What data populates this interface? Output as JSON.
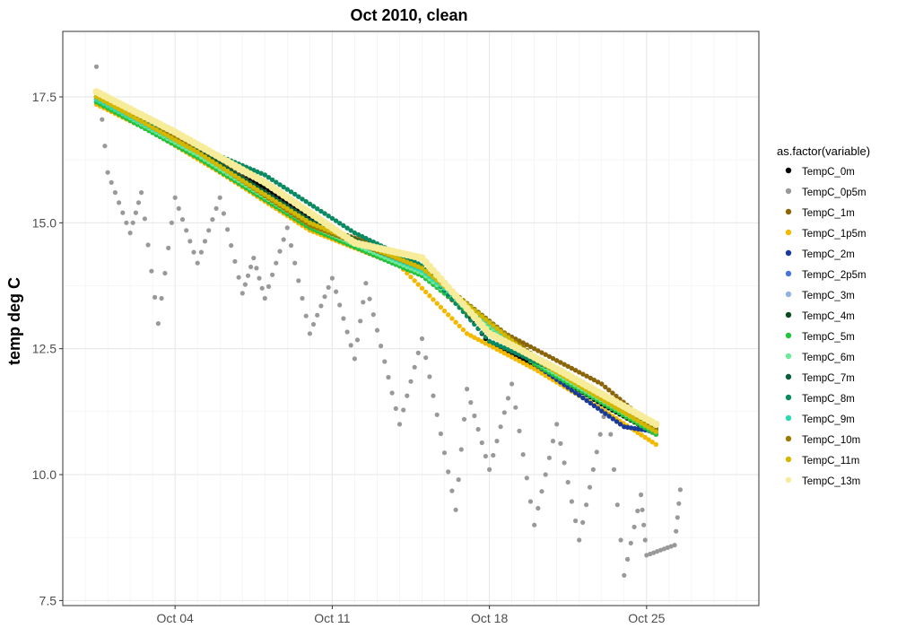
{
  "chart_data": {
    "type": "scatter",
    "title": "Oct 2010, clean",
    "xlabel": "",
    "ylabel": "temp deg C",
    "x_axis": {
      "type": "date",
      "range": [
        "2010-09-29",
        "2010-10-30"
      ],
      "ticks": [
        {
          "date": "2010-10-04",
          "label": "Oct 04"
        },
        {
          "date": "2010-10-11",
          "label": "Oct 11"
        },
        {
          "date": "2010-10-18",
          "label": "Oct 18"
        },
        {
          "date": "2010-10-25",
          "label": "Oct 25"
        }
      ]
    },
    "y_axis": {
      "range": [
        7.4,
        18.8
      ],
      "ticks": [
        {
          "value": 7.5,
          "label": "7.5"
        },
        {
          "value": 10.0,
          "label": "10.0"
        },
        {
          "value": 12.5,
          "label": "12.5"
        },
        {
          "value": 15.0,
          "label": "15.0"
        },
        {
          "value": 17.5,
          "label": "17.5"
        }
      ]
    },
    "grid": true,
    "legend": {
      "title": "as.factor(variable)",
      "placement": "right"
    },
    "series": [
      {
        "name": "TempC_0m",
        "color": "#000000",
        "points": [
          [
            "2010-09-30T12:00",
            17.45
          ],
          [
            "2010-10-02",
            17.05
          ],
          [
            "2010-10-05",
            16.35
          ],
          [
            "2010-10-08",
            15.7
          ],
          [
            "2010-10-11",
            14.85
          ],
          [
            "2010-10-14",
            14.35
          ],
          [
            "2010-10-16",
            13.8
          ],
          [
            "2010-10-18",
            12.6
          ],
          [
            "2010-10-21",
            11.95
          ],
          [
            "2010-10-23",
            11.4
          ],
          [
            "2010-10-25T10:00",
            10.8
          ]
        ]
      },
      {
        "name": "TempC_0p5m",
        "color": "#999999",
        "points": [
          [
            "2010-09-30T12:00",
            18.1
          ],
          [
            "2010-10-01",
            16.0
          ],
          [
            "2010-10-02",
            14.8
          ],
          [
            "2010-10-02T12:00",
            15.6
          ],
          [
            "2010-10-03T06:00",
            13.0
          ],
          [
            "2010-10-04",
            15.5
          ],
          [
            "2010-10-05",
            14.2
          ],
          [
            "2010-10-06",
            15.5
          ],
          [
            "2010-10-07",
            13.6
          ],
          [
            "2010-10-07T12:00",
            14.3
          ],
          [
            "2010-10-08",
            13.5
          ],
          [
            "2010-10-09",
            14.9
          ],
          [
            "2010-10-10",
            12.8
          ],
          [
            "2010-10-11",
            13.9
          ],
          [
            "2010-10-12",
            12.3
          ],
          [
            "2010-10-12T12:00",
            13.8
          ],
          [
            "2010-10-14",
            11.0
          ],
          [
            "2010-10-15",
            12.7
          ],
          [
            "2010-10-16T12:00",
            9.3
          ],
          [
            "2010-10-17",
            11.7
          ],
          [
            "2010-10-18",
            10.1
          ],
          [
            "2010-10-19",
            11.8
          ],
          [
            "2010-10-20",
            9.0
          ],
          [
            "2010-10-21",
            11.0
          ],
          [
            "2010-10-22",
            8.7
          ],
          [
            "2010-10-23T06:00",
            11.5
          ],
          [
            "2010-10-24",
            8.0
          ],
          [
            "2010-10-24T18:00",
            9.6
          ],
          [
            "2010-10-25",
            8.4
          ],
          [
            "2010-10-26T06:00",
            8.6
          ],
          [
            "2010-10-26T12:00",
            9.7
          ]
        ]
      },
      {
        "name": "TempC_1m",
        "color": "#8b6508",
        "points": [
          [
            "2010-09-30T12:00",
            17.5
          ],
          [
            "2010-10-03",
            17.0
          ],
          [
            "2010-10-06",
            16.2
          ],
          [
            "2010-10-10",
            15.0
          ],
          [
            "2010-10-14",
            14.4
          ],
          [
            "2010-10-17",
            13.2
          ],
          [
            "2010-10-20",
            12.5
          ],
          [
            "2010-10-23",
            11.8
          ],
          [
            "2010-10-25T10:00",
            10.9
          ]
        ]
      },
      {
        "name": "TempC_1p5m",
        "color": "#f5b800",
        "points": [
          [
            "2010-09-30T12:00",
            17.35
          ],
          [
            "2010-10-03",
            16.8
          ],
          [
            "2010-10-06",
            16.0
          ],
          [
            "2010-10-10",
            14.85
          ],
          [
            "2010-10-14",
            14.15
          ],
          [
            "2010-10-17",
            12.8
          ],
          [
            "2010-10-20",
            12.1
          ],
          [
            "2010-10-23",
            11.3
          ],
          [
            "2010-10-25T10:00",
            10.6
          ]
        ]
      },
      {
        "name": "TempC_2m",
        "color": "#1a3a9a",
        "points": [
          [
            "2010-09-30T12:00",
            17.4
          ],
          [
            "2010-10-05",
            16.3
          ],
          [
            "2010-10-10",
            14.9
          ],
          [
            "2010-10-15",
            13.95
          ],
          [
            "2010-10-20",
            12.2
          ],
          [
            "2010-10-24",
            10.95
          ],
          [
            "2010-10-25T10:00",
            10.85
          ]
        ]
      },
      {
        "name": "TempC_2p5m",
        "color": "#4a74d9",
        "points": [
          [
            "2010-09-30T12:00",
            17.45
          ],
          [
            "2010-10-05",
            16.35
          ],
          [
            "2010-10-10",
            14.95
          ],
          [
            "2010-10-15",
            14.0
          ],
          [
            "2010-10-20",
            12.25
          ],
          [
            "2010-10-25T10:00",
            10.85
          ]
        ]
      },
      {
        "name": "TempC_3m",
        "color": "#8fb4e0",
        "points": [
          [
            "2010-09-30T12:00",
            17.45
          ],
          [
            "2010-10-05",
            16.35
          ],
          [
            "2010-10-10",
            14.95
          ],
          [
            "2010-10-15",
            14.0
          ],
          [
            "2010-10-20",
            12.25
          ],
          [
            "2010-10-25T10:00",
            10.85
          ]
        ]
      },
      {
        "name": "TempC_4m",
        "color": "#0b4a1e",
        "points": [
          [
            "2010-09-30T12:00",
            17.45
          ],
          [
            "2010-10-05",
            16.4
          ],
          [
            "2010-10-10",
            15.0
          ],
          [
            "2010-10-15",
            14.05
          ],
          [
            "2010-10-20",
            12.3
          ],
          [
            "2010-10-25T10:00",
            10.9
          ]
        ]
      },
      {
        "name": "TempC_5m",
        "color": "#22c43a",
        "points": [
          [
            "2010-09-30T12:00",
            17.4
          ],
          [
            "2010-10-05",
            16.3
          ],
          [
            "2010-10-10",
            14.9
          ],
          [
            "2010-10-15",
            13.95
          ],
          [
            "2010-10-20",
            12.2
          ],
          [
            "2010-10-25T10:00",
            10.8
          ]
        ]
      },
      {
        "name": "TempC_6m",
        "color": "#6ee89a",
        "points": [
          [
            "2010-09-30T12:00",
            17.45
          ],
          [
            "2010-10-05",
            16.35
          ],
          [
            "2010-10-10",
            14.95
          ],
          [
            "2010-10-15",
            14.0
          ],
          [
            "2010-10-20",
            12.25
          ],
          [
            "2010-10-25T10:00",
            10.85
          ]
        ]
      },
      {
        "name": "TempC_7m",
        "color": "#0a5e3a",
        "points": [
          [
            "2010-09-30T12:00",
            17.5
          ],
          [
            "2010-10-05",
            16.45
          ],
          [
            "2010-10-10",
            15.05
          ],
          [
            "2010-10-15",
            14.1
          ],
          [
            "2010-10-20",
            12.35
          ],
          [
            "2010-10-25T10:00",
            10.9
          ]
        ]
      },
      {
        "name": "TempC_8m",
        "color": "#0a8a62",
        "points": [
          [
            "2010-09-30T12:00",
            17.5
          ],
          [
            "2010-10-04",
            16.7
          ],
          [
            "2010-10-08",
            15.95
          ],
          [
            "2010-10-12",
            14.8
          ],
          [
            "2010-10-15",
            14.15
          ],
          [
            "2010-10-18",
            12.65
          ],
          [
            "2010-10-21",
            12.05
          ],
          [
            "2010-10-25T10:00",
            10.95
          ]
        ]
      },
      {
        "name": "TempC_9m",
        "color": "#2ed8b0",
        "points": [
          [
            "2010-09-30T12:00",
            17.45
          ],
          [
            "2010-10-05",
            16.4
          ],
          [
            "2010-10-10",
            15.0
          ],
          [
            "2010-10-15",
            14.05
          ],
          [
            "2010-10-20",
            12.3
          ],
          [
            "2010-10-25T10:00",
            10.85
          ]
        ]
      },
      {
        "name": "TempC_10m",
        "color": "#9a7a00",
        "points": [
          [
            "2010-09-30T12:00",
            17.5
          ],
          [
            "2010-10-03",
            17.0
          ],
          [
            "2010-10-10",
            14.95
          ],
          [
            "2010-10-15",
            14.1
          ],
          [
            "2010-10-20",
            12.35
          ],
          [
            "2010-10-25T10:00",
            10.9
          ]
        ]
      },
      {
        "name": "TempC_11m",
        "color": "#d4b800",
        "points": [
          [
            "2010-09-30T12:00",
            17.5
          ],
          [
            "2010-10-05",
            16.4
          ],
          [
            "2010-10-10",
            15.0
          ],
          [
            "2010-10-15",
            14.1
          ],
          [
            "2010-10-20",
            12.3
          ],
          [
            "2010-10-25T10:00",
            10.85
          ]
        ]
      },
      {
        "name": "TempC_13m",
        "color": "#f7ec9a",
        "points": [
          [
            "2010-09-30T12:00",
            17.6
          ],
          [
            "2010-10-04",
            16.8
          ],
          [
            "2010-10-08",
            15.8
          ],
          [
            "2010-10-12",
            14.6
          ],
          [
            "2010-10-15",
            14.3
          ],
          [
            "2010-10-18",
            12.8
          ],
          [
            "2010-10-21",
            12.1
          ],
          [
            "2010-10-23",
            11.6
          ],
          [
            "2010-10-25T10:00",
            11.0
          ]
        ]
      }
    ]
  }
}
